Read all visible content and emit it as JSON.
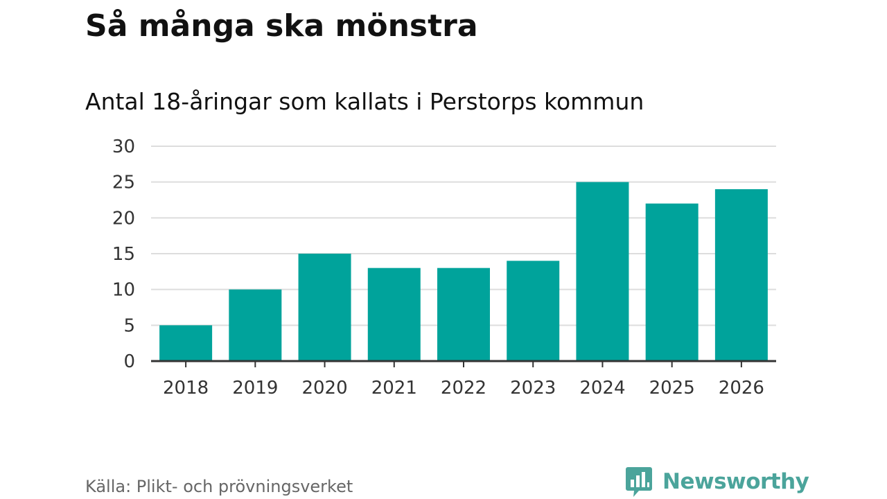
{
  "title": "Så många ska mönstra",
  "subtitle": "Antal 18-åringar som kallats i Perstorps kommun",
  "source": "Källa: Plikt- och prövningsverket",
  "brand": {
    "name": "Newsworthy",
    "icon": "newsworthy-logo-icon"
  },
  "colors": {
    "bar": "#00a39b",
    "grid": "#dddddd",
    "axis": "#333333",
    "tick_text": "#333333",
    "brand": "#4ba49b"
  },
  "chart_data": {
    "type": "bar",
    "categories": [
      "2018",
      "2019",
      "2020",
      "2021",
      "2022",
      "2023",
      "2024",
      "2025",
      "2026"
    ],
    "values": [
      5,
      10,
      15,
      13,
      13,
      14,
      25,
      22,
      24
    ],
    "title": "Så många ska mönstra",
    "subtitle": "Antal 18-åringar som kallats i Perstorps kommun",
    "xlabel": "",
    "ylabel": "",
    "ylim": [
      0,
      30
    ],
    "yticks": [
      "0",
      "5",
      "10",
      "15",
      "20",
      "25",
      "30"
    ],
    "grid": true,
    "legend": "none"
  }
}
